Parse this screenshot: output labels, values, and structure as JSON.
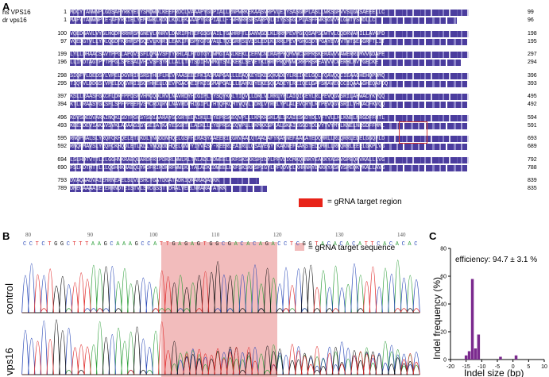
{
  "panels": {
    "a": "A",
    "b": "B",
    "c": "C"
  },
  "alignment": {
    "species_human": "hs VPS16",
    "species_zebrafish": "dr vps16",
    "blocks": [
      {
        "h_start": "1",
        "h_end": "99",
        "z_start": "1",
        "z_end": "96",
        "h_seq": "MDCYTANWNPLGDSAFYRKYELYSMDWDLKEEFRDCLVAAAPYGGPIALLRNPWRKEKAASVRPVLEIYSASGMPLASLLWKSGPVVSLGWSAEEELLC",
        "z_seq": "MAFVTANWNPLE-AFYRKIELYEMAWKLKDGLKDLEKAAAPYGGPIALL--WHNRRSPSARPQLEIYSSSGLPLASFPWKSGVVKLGWTVSDDLLC"
      },
      {
        "h_start": "100",
        "h_end": "198",
        "z_start": "97",
        "z_end": "195",
        "h_seq": "VQEDGAVLVYGLHGDFRRHFSMGNEVLQNRVLDARIFHTEFGSGVAILTGAHRFTLSANVGDLKLRRMPEVPGLQSAPSCWTVLCQDRVAHILLAVGPD",
        "z_seq": "VQEDGTVLLYDLQGDFKRHFSMGQEVLKNRILEAKIFHSPYGTGVALLTQSGRFSLVSSLEDLKLRRLPEVPGHGSDTPGAYEVAVTWTSESGRFTLIT"
      },
      {
        "h_start": "199",
        "h_end": "297",
        "z_start": "196",
        "z_end": "294",
        "h_seq": "LYLLDHAACSAVTPPGLAPGVSSFLQMAVSFTYRHLALFTDTGYIWMGTASLKEKLCEFNCNIRAPPKQMVWCSRPRSKERAVVVAWERRLMVVGDAPE",
        "z_seq": "LLINDTAGTPVTPPGLSPESALVHCVSFSYKLLALLTDTSDIHVWMGTSNLKEKLSEVETKIHRPPRQMVWCRRPKSKEAVVVCWERHLMVVGECKE"
      },
      {
        "h_start": "298",
        "h_end": "396",
        "z_start": "295",
        "z_end": "393",
        "h_seq": "SIQFVLDEDSYLVPELDGVRIFSRSTHEFLHEVPAASEEIFKIASMAPGALLLEAQKEYEKESQKADEYLREIQELGQLTQAVQQCIEAAGHEHQPDMQ",
        "z_seq": "TIQYVLDDGSIVPELDQGVRIISGTHHELLQEVPGACQEIFKIGSMAPGALLLEAHKEYEKESQKADEYLREIQELGAFSKAVEQCCIQAAAGHEQAFDQ"
      },
      {
        "h_start": "397",
        "h_end": "495",
        "z_start": "394",
        "z_end": "492",
        "h_seq": "KSLLRAASFGKCFLDRFPPDSFVHMCQDLRVLNAVRDYHIGIPLTYSQYKQLTIQVLLDRLVLRRLYPLAIQICEYLRLPEVQGVSRILAHWACYKVQQ",
        "z_seq": "KTLLRAASYGKSFLSPFPPEEFVSMCRDLRVLNAVRDPHIGIPLTHTQFKQMTVQVLIDRLVYRRLYPLALEVCRYLRTPEVQGVSRILVHWACFKVQQ"
      },
      {
        "h_start": "496",
        "h_end": "594",
        "z_start": "493",
        "z_end": "591",
        "h_seq": "KDVSDEDVARAINQKLGDTPGVSYSDIAARAYGCGRTELAIKLLEYEPRSGEQVPLLLKMKRSKLALSKAIESGDTDLVFTVLLHLKNELNRGDFFMTL",
        "z_seq": "KEESDEVIAKAVSVKLADAAGIGYSEIATKAYESGRTELAIKLLEYEPRSGEQVPLLLKMKKSPLALSKAIEGGDTDLVYTVYMYLKNELNRGDFFMML"
      },
      {
        "h_start": "595",
        "h_end": "693",
        "z_start": "592",
        "z_end": "689",
        "h_seq": "RNQPMALSLYRQFCKHQELETLKDLYNQDDNHQELGSFHIRASYAAEERIEGRVAALQTAADAFYKAKNEFAAKATEDQMRLLRLQRRLEDELGGQFLD",
        "z_seq": "RNQPMAVSLYRQFCKHQDLETLKDLYNQDDDHQELGNFYIYVASY-KEERLEAIRLLQSAVEGYYKAKNEFAAKSTEDQMRLLRFQRRLEEELGKPLVG"
      },
      {
        "h_start": "694",
        "h_end": "792",
        "z_start": "690",
        "z_end": "788",
        "h_seq": "LSLHDTVTTLILGGHNKRAEQLARDFRIPDKRLWWLKLTALADLEDWEELEKFSKSKKSPIGYLPFVDICMKQHNKYEAKKYASRVGPEQKVKALLLVG",
        "z_seq": "FSLHDTMTTLLLQGHHKHAEQLYKDFRIPDKRFWWLKLTALAEKEDWEELEKFSKSKKSPIGYLPFVDVCLKHHNKYEAKKYASKVSPEQKVKALLAVG"
      },
      {
        "h_start": "793",
        "h_end": "839",
        "z_start": "789",
        "z_end": "835",
        "h_seq": "DVAQAADVAIEHRNEAELSLVLSHCTGATDGATADKIQRARAQAQKK",
        "z_seq": "DMEGAAAAIEIERRNDTEISTVLSRCGSSTTDHALVERLNRARATATKK"
      }
    ],
    "legend_label": "= gRNA target region"
  },
  "chromatogram": {
    "ruler": [
      "80",
      "90",
      "100",
      "110",
      "120",
      "130",
      "140"
    ],
    "bases": "CCTCTGGCTTTAAGCAAAGCCATTGAGAGTGGCGACACAGACCTCGGTACACACATTCACACAC",
    "legend_label": "= gRNA target sequence",
    "track_control": "control",
    "track_mutant": "vps16"
  },
  "indel_chart": {
    "annotation": "efficiency: 94.7 ± 3.1 %"
  },
  "colors": {
    "conserved": "#4b3d9e",
    "similar": "#a79fd6",
    "target_red": "#e82318",
    "target_pink": "#f2bcbc",
    "bar_purple": "#7b2a8e",
    "base_A": "#2e9f3a",
    "base_C": "#2b4ab8",
    "base_G": "#111111",
    "base_T": "#e02a2a"
  },
  "chart_data": {
    "type": "bar",
    "xlabel": "Indel size (bp)",
    "ylabel": "Indel frequency (%)",
    "xlim": [
      -20,
      10
    ],
    "ylim": [
      0,
      80
    ],
    "xticks": [
      -20,
      -15,
      -10,
      -5,
      0,
      5,
      10
    ],
    "yticks": [
      0,
      20,
      40,
      60,
      80
    ],
    "x": [
      -15,
      -14,
      -13,
      -12,
      -11,
      -4,
      1
    ],
    "values": [
      3,
      6,
      58,
      8,
      18,
      2,
      3
    ],
    "annotation": "efficiency: 94.7 ± 3.1 %"
  }
}
